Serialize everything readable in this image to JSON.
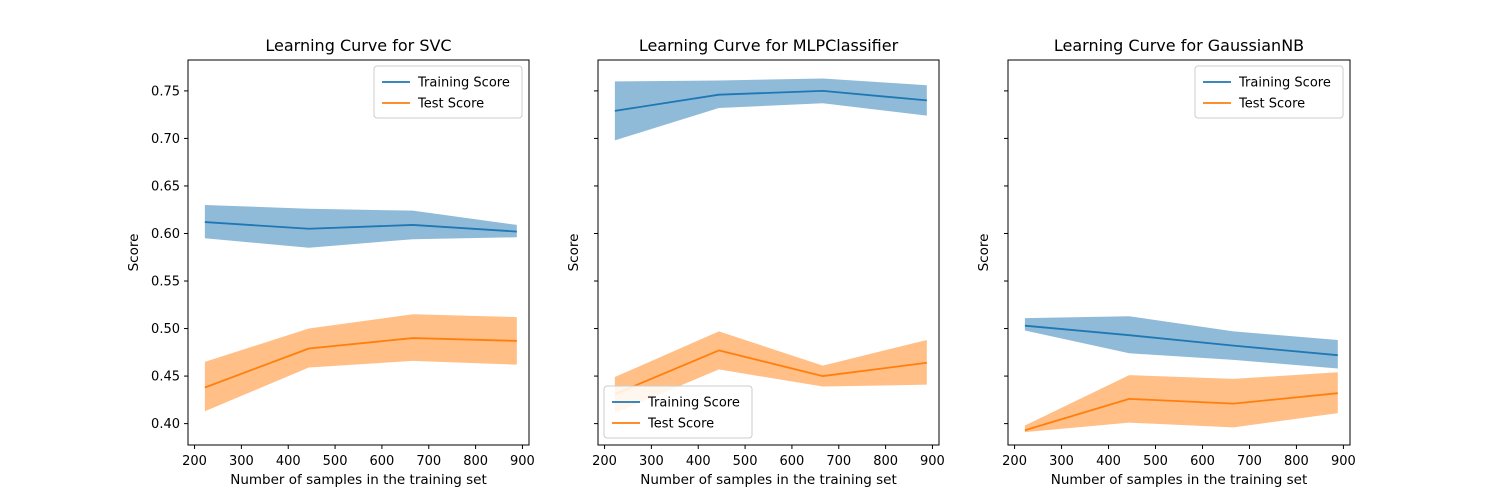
{
  "figure": {
    "ylabel": "Score",
    "xlabel": "Number of samples in the training set",
    "xlim": [
      186,
      914
    ],
    "ylim": [
      0.3775,
      0.7825
    ],
    "xticks": [
      200,
      300,
      400,
      500,
      600,
      700,
      800,
      900
    ],
    "yticks": [
      0.4,
      0.45,
      0.5,
      0.55,
      0.6,
      0.65,
      0.7,
      0.75
    ],
    "sharey": true
  },
  "colors": {
    "train": "#1f77b4",
    "test": "#ff7f0e",
    "train_band": "#1f77b4",
    "test_band": "#ff7f0e"
  },
  "chart_data": [
    {
      "type": "line",
      "title": "Learning Curve for SVC",
      "xlabel": "Number of samples in the training set",
      "ylabel": "Score",
      "x": [
        222,
        444,
        666,
        888
      ],
      "legend": "upper right",
      "series": [
        {
          "name": "Training Score",
          "mean": [
            0.612,
            0.605,
            0.609,
            0.602
          ],
          "lower": [
            0.595,
            0.585,
            0.594,
            0.596
          ],
          "upper": [
            0.63,
            0.626,
            0.624,
            0.609
          ]
        },
        {
          "name": "Test Score",
          "mean": [
            0.438,
            0.479,
            0.49,
            0.487
          ],
          "lower": [
            0.413,
            0.459,
            0.466,
            0.462
          ],
          "upper": [
            0.465,
            0.5,
            0.515,
            0.512
          ]
        }
      ]
    },
    {
      "type": "line",
      "title": "Learning Curve for MLPClassifier",
      "xlabel": "Number of samples in the training set",
      "ylabel": "Score",
      "x": [
        222,
        444,
        666,
        888
      ],
      "legend": "lower left",
      "series": [
        {
          "name": "Training Score",
          "mean": [
            0.729,
            0.746,
            0.75,
            0.74
          ],
          "lower": [
            0.698,
            0.732,
            0.737,
            0.724
          ],
          "upper": [
            0.76,
            0.761,
            0.763,
            0.756
          ]
        },
        {
          "name": "Test Score",
          "mean": [
            0.431,
            0.477,
            0.45,
            0.464
          ],
          "lower": [
            0.411,
            0.457,
            0.439,
            0.441
          ],
          "upper": [
            0.449,
            0.497,
            0.461,
            0.488
          ]
        }
      ]
    },
    {
      "type": "line",
      "title": "Learning Curve for GaussianNB",
      "xlabel": "Number of samples in the training set",
      "ylabel": "Score",
      "x": [
        222,
        444,
        666,
        888
      ],
      "legend": "upper right",
      "series": [
        {
          "name": "Training Score",
          "mean": [
            0.503,
            0.493,
            0.482,
            0.472
          ],
          "lower": [
            0.498,
            0.474,
            0.467,
            0.458
          ],
          "upper": [
            0.511,
            0.513,
            0.497,
            0.488
          ]
        },
        {
          "name": "Test Score",
          "mean": [
            0.393,
            0.426,
            0.421,
            0.432
          ],
          "lower": [
            0.391,
            0.401,
            0.396,
            0.411
          ],
          "upper": [
            0.398,
            0.451,
            0.447,
            0.454
          ]
        }
      ]
    }
  ]
}
